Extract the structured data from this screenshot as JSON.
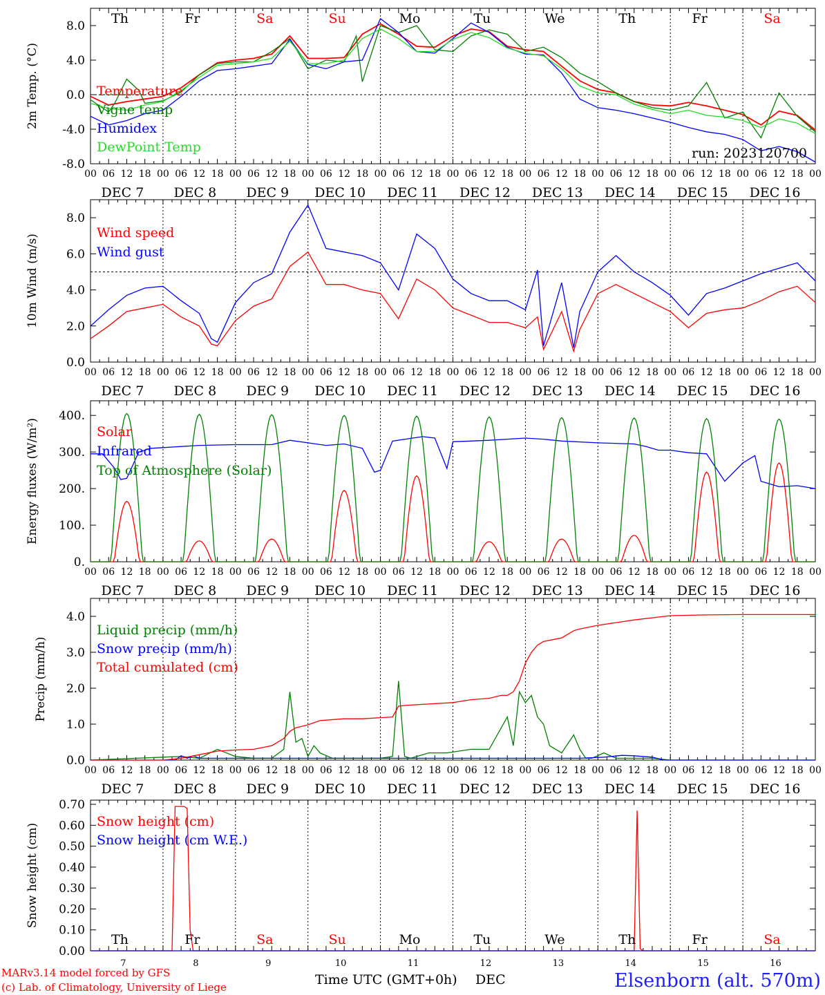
{
  "days": [
    {
      "short": "Th",
      "date": "7",
      "weekend": false
    },
    {
      "short": "Fr",
      "date": "8",
      "weekend": false
    },
    {
      "short": "Sa",
      "date": "9",
      "weekend": true
    },
    {
      "short": "Su",
      "date": "10",
      "weekend": true
    },
    {
      "short": "Mo",
      "date": "11",
      "weekend": false
    },
    {
      "short": "Tu",
      "date": "12",
      "weekend": false
    },
    {
      "short": "We",
      "date": "13",
      "weekend": false
    },
    {
      "short": "Th",
      "date": "14",
      "weekend": false
    },
    {
      "short": "Fr",
      "date": "15",
      "weekend": false
    },
    {
      "short": "Sa",
      "date": "16",
      "weekend": true
    }
  ],
  "month": "DEC",
  "hour_ticks": [
    "00",
    "06",
    "12",
    "18"
  ],
  "run_label": "run: 2023120700",
  "footer": {
    "credit1": "MARv3.14 model forced by GFS",
    "credit2": "(c) Lab. of Climatology, University of Liege",
    "xlabel": "Time UTC (GMT+0h)",
    "month": "DEC",
    "station": "Elsenborn (alt. 570m)"
  },
  "colors": {
    "red": "#ff0000",
    "green": "#008000",
    "blue": "#0000ff",
    "lightgreen": "#22dd22",
    "weekend": "#ff0000"
  },
  "chart_data": [
    {
      "type": "line",
      "ylabel": "2m Temp. (°C)",
      "ylim": [
        -8,
        10
      ],
      "yticks": [
        "-8.0",
        "-4.0",
        "0.0",
        "4.0",
        "8.0"
      ],
      "ytick_values": [
        -8,
        -4,
        0,
        4,
        8
      ],
      "dashed_reference": 0,
      "legend_placement": "left",
      "x_unit": "hours since DEC 7 00 UTC",
      "series": [
        {
          "name": "Temperature",
          "color": "red",
          "x": [
            0,
            6,
            12,
            18,
            24,
            30,
            36,
            42,
            48,
            54,
            60,
            66,
            72,
            78,
            84,
            90,
            96,
            102,
            108,
            114,
            120,
            126,
            132,
            138,
            144,
            150,
            156,
            162,
            168,
            174,
            180,
            186,
            192,
            198,
            204,
            210,
            216,
            222,
            228,
            234,
            240
          ],
          "y": [
            -0.2,
            -1.2,
            -0.8,
            -0.5,
            -0.2,
            0.8,
            2.3,
            3.7,
            4.0,
            4.2,
            4.7,
            6.8,
            4.2,
            4.2,
            4.3,
            7.0,
            8.2,
            7.0,
            5.6,
            5.5,
            6.8,
            7.6,
            7.3,
            5.6,
            5.2,
            5.0,
            3.3,
            1.6,
            0.6,
            0.2,
            -0.8,
            -1.2,
            -1.3,
            -0.9,
            -1.3,
            -1.8,
            -2.3,
            -3.5,
            -1.9,
            -2.4,
            -4.1
          ]
        },
        {
          "name": "Vigne temp",
          "color": "green",
          "x": [
            0,
            6,
            8,
            12,
            16,
            18,
            24,
            30,
            36,
            42,
            48,
            54,
            60,
            66,
            72,
            78,
            84,
            88,
            90,
            96,
            102,
            108,
            114,
            120,
            126,
            132,
            138,
            144,
            150,
            156,
            162,
            168,
            174,
            180,
            186,
            192,
            198,
            204,
            210,
            216,
            222,
            228,
            234,
            240
          ],
          "y": [
            -0.6,
            -2.0,
            -1.0,
            1.8,
            0.5,
            -1.0,
            -0.7,
            0.3,
            2.3,
            3.6,
            3.8,
            3.8,
            5.0,
            6.5,
            3.0,
            4.0,
            3.8,
            6.8,
            1.5,
            8.0,
            7.2,
            8.0,
            5.2,
            5.0,
            6.8,
            7.5,
            7.0,
            5.0,
            5.5,
            4.3,
            2.5,
            1.5,
            0.2,
            -0.8,
            -1.5,
            -1.8,
            -1.3,
            1.4,
            -2.7,
            -2.0,
            -5.0,
            0.2,
            -2.5,
            -4.3
          ]
        },
        {
          "name": "Humidex",
          "color": "blue",
          "x": [
            0,
            6,
            12,
            18,
            24,
            30,
            36,
            42,
            48,
            54,
            60,
            66,
            72,
            78,
            84,
            90,
            96,
            102,
            108,
            114,
            120,
            126,
            132,
            138,
            144,
            150,
            156,
            162,
            168,
            174,
            180,
            186,
            192,
            198,
            204,
            210,
            216,
            222,
            228,
            234,
            240
          ],
          "y": [
            -2.5,
            -3.5,
            -3.0,
            -2.2,
            -1.8,
            -0.2,
            1.6,
            2.8,
            3.0,
            3.3,
            3.6,
            6.4,
            3.5,
            3.0,
            3.8,
            4.0,
            8.8,
            7.2,
            5.0,
            4.8,
            6.5,
            8.3,
            7.2,
            5.5,
            4.7,
            4.6,
            2.5,
            -0.5,
            -1.5,
            -1.8,
            -2.2,
            -2.7,
            -3.2,
            -3.8,
            -4.3,
            -4.6,
            -5.2,
            -6.5,
            -6.0,
            -6.6,
            -7.8
          ]
        },
        {
          "name": "DewPoint Temp",
          "color": "lightgreen",
          "x": [
            0,
            6,
            12,
            18,
            24,
            30,
            36,
            42,
            48,
            54,
            60,
            66,
            72,
            78,
            84,
            90,
            96,
            102,
            108,
            114,
            120,
            126,
            132,
            138,
            144,
            150,
            156,
            162,
            168,
            174,
            180,
            186,
            192,
            198,
            204,
            210,
            216,
            222,
            228,
            234,
            240
          ],
          "y": [
            -1.0,
            -1.6,
            -1.8,
            -1.2,
            -0.8,
            0.5,
            2.0,
            3.4,
            3.6,
            3.8,
            4.2,
            6.2,
            3.6,
            3.6,
            4.0,
            6.5,
            7.6,
            6.5,
            5.0,
            5.0,
            6.4,
            7.2,
            6.6,
            5.4,
            4.8,
            4.5,
            3.0,
            1.0,
            0.2,
            0.0,
            -1.1,
            -1.7,
            -2.2,
            -1.8,
            -2.4,
            -2.6,
            -3.0,
            -3.8,
            -2.8,
            -3.3,
            -4.5
          ]
        }
      ]
    },
    {
      "type": "line",
      "ylabel": "10m Wind (m/s)",
      "ylim": [
        0,
        9
      ],
      "yticks": [
        "0.0",
        "2.0",
        "4.0",
        "6.0",
        "8.0"
      ],
      "ytick_values": [
        0,
        2,
        4,
        6,
        8
      ],
      "dashed_reference": 5,
      "legend_placement": "left",
      "x_unit": "hours since DEC 7 00 UTC",
      "series": [
        {
          "name": "Wind speed",
          "color": "red",
          "x": [
            0,
            6,
            12,
            18,
            24,
            30,
            36,
            40,
            42,
            48,
            54,
            60,
            66,
            72,
            78,
            84,
            90,
            96,
            102,
            108,
            114,
            120,
            126,
            132,
            138,
            144,
            148,
            150,
            156,
            160,
            162,
            168,
            174,
            180,
            186,
            192,
            198,
            204,
            210,
            216,
            222,
            228,
            234,
            240
          ],
          "y": [
            1.3,
            2.0,
            2.8,
            3.0,
            3.2,
            2.5,
            2.0,
            1.0,
            0.9,
            2.3,
            3.1,
            3.5,
            5.3,
            6.1,
            4.3,
            4.3,
            4.0,
            3.8,
            2.4,
            4.6,
            4.0,
            3.0,
            2.6,
            2.2,
            2.2,
            1.9,
            2.5,
            0.7,
            2.8,
            0.6,
            1.8,
            3.8,
            4.3,
            3.8,
            3.3,
            2.8,
            1.9,
            2.7,
            2.9,
            3.0,
            3.4,
            3.9,
            4.2,
            3.3
          ]
        },
        {
          "name": "Wind gust",
          "color": "blue",
          "x": [
            0,
            6,
            12,
            18,
            24,
            30,
            36,
            40,
            42,
            48,
            54,
            60,
            66,
            72,
            78,
            84,
            90,
            96,
            102,
            108,
            114,
            120,
            126,
            132,
            138,
            144,
            148,
            150,
            156,
            160,
            162,
            168,
            174,
            180,
            186,
            192,
            198,
            204,
            210,
            216,
            222,
            228,
            234,
            240
          ],
          "y": [
            2.0,
            2.9,
            3.7,
            4.1,
            4.2,
            3.4,
            2.7,
            1.3,
            1.1,
            3.3,
            4.4,
            4.9,
            7.2,
            8.7,
            6.3,
            6.1,
            5.9,
            5.5,
            4.0,
            7.1,
            6.3,
            4.6,
            3.8,
            3.4,
            3.4,
            2.9,
            5.1,
            0.9,
            4.4,
            0.8,
            2.8,
            5.0,
            5.9,
            5.0,
            4.4,
            3.7,
            2.6,
            3.8,
            4.1,
            4.5,
            4.9,
            5.2,
            5.5,
            4.5
          ]
        }
      ]
    },
    {
      "type": "line",
      "ylabel": "Energy fluxes (W/m²)",
      "ylim": [
        0,
        440
      ],
      "yticks": [
        "0.",
        "100.",
        "200.",
        "300.",
        "400."
      ],
      "ytick_values": [
        0,
        100,
        200,
        300,
        400
      ],
      "legend_placement": "left",
      "x_unit": "hours since DEC 7 00 UTC",
      "day_peaks": {
        "solar": [
          165,
          57,
          62,
          195,
          235,
          55,
          62,
          72,
          245,
          270
        ],
        "top_of_atmosphere": [
          405,
          403,
          402,
          400,
          398,
          396,
          394,
          393,
          391,
          390
        ]
      },
      "series": [
        {
          "name": "Solar",
          "color": "red",
          "derived_from": "day_peaks.solar"
        },
        {
          "name": "Infrared",
          "color": "blue",
          "x": [
            0,
            4,
            8,
            10,
            12,
            16,
            20,
            24,
            36,
            48,
            60,
            66,
            72,
            78,
            84,
            90,
            94,
            96,
            100,
            110,
            114,
            118,
            120,
            126,
            132,
            144,
            150,
            156,
            168,
            180,
            184,
            188,
            192,
            198,
            204,
            210,
            216,
            220,
            222,
            228,
            234,
            240
          ],
          "y": [
            295,
            295,
            255,
            225,
            228,
            300,
            310,
            312,
            318,
            320,
            320,
            332,
            325,
            318,
            322,
            310,
            245,
            250,
            330,
            342,
            338,
            255,
            328,
            330,
            332,
            338,
            335,
            330,
            325,
            322,
            315,
            305,
            305,
            298,
            295,
            220,
            270,
            290,
            220,
            205,
            208,
            200
          ]
        },
        {
          "name": "Top of Atmosphere (Solar)",
          "color": "green",
          "derived_from": "day_peaks.top_of_atmosphere"
        }
      ]
    },
    {
      "type": "line",
      "ylabel": "Precip (mm/h)",
      "ylim": [
        0,
        4.5
      ],
      "yticks": [
        "0.0",
        "1.0",
        "2.0",
        "3.0",
        "4.0"
      ],
      "ytick_values": [
        0,
        1,
        2,
        3,
        4
      ],
      "legend_placement": "left",
      "x_unit": "hours since DEC 7 00 UTC",
      "series": [
        {
          "name": "Liquid precip (mm/h)",
          "color": "green",
          "x": [
            0,
            30,
            36,
            42,
            48,
            54,
            60,
            64,
            66,
            68,
            70,
            72,
            74,
            76,
            80,
            84,
            90,
            96,
            100,
            102,
            104,
            106,
            112,
            118,
            126,
            132,
            138,
            140,
            142,
            144,
            146,
            148,
            150,
            152,
            156,
            160,
            162,
            164,
            166,
            170,
            174,
            178,
            182,
            186,
            192,
            200,
            210,
            240
          ],
          "y": [
            0,
            0.1,
            0.05,
            0.3,
            0.1,
            0.05,
            0.05,
            0.3,
            1.9,
            0.5,
            0.6,
            0.1,
            0.4,
            0.2,
            0.05,
            0.05,
            0.05,
            0.05,
            0.1,
            2.2,
            0.1,
            0.05,
            0.2,
            0.2,
            0.3,
            0.3,
            1.2,
            0.4,
            1.9,
            1.6,
            1.8,
            1.2,
            1.0,
            0.4,
            0.2,
            0.7,
            0.3,
            0.05,
            0.05,
            0.2,
            0.05,
            0.05,
            0.05,
            0.05,
            0,
            0,
            0,
            0
          ]
        },
        {
          "name": "Snow precip (mm/h)",
          "color": "blue",
          "x": [
            0,
            28,
            30,
            32,
            34,
            36,
            80,
            150,
            162,
            170,
            176,
            180,
            186,
            190,
            240
          ],
          "y": [
            0,
            0,
            0.12,
            0.05,
            0.12,
            0.05,
            0.05,
            0.05,
            0.05,
            0.08,
            0.13,
            0.12,
            0.08,
            0,
            0
          ]
        },
        {
          "name": "Total cumulated (cm)",
          "color": "red",
          "x": [
            0,
            24,
            30,
            36,
            42,
            48,
            54,
            60,
            64,
            66,
            68,
            72,
            76,
            84,
            90,
            96,
            100,
            102,
            104,
            106,
            120,
            126,
            132,
            136,
            138,
            140,
            142,
            144,
            146,
            148,
            150,
            156,
            160,
            162,
            168,
            180,
            192,
            204,
            216,
            228,
            240
          ],
          "y": [
            0,
            0,
            0.05,
            0.15,
            0.25,
            0.28,
            0.3,
            0.4,
            0.6,
            0.8,
            0.9,
            0.98,
            1.1,
            1.15,
            1.15,
            1.18,
            1.2,
            1.5,
            1.52,
            1.53,
            1.6,
            1.68,
            1.72,
            1.8,
            1.8,
            1.9,
            2.2,
            2.7,
            3.0,
            3.2,
            3.3,
            3.4,
            3.6,
            3.65,
            3.75,
            3.9,
            4.02,
            4.04,
            4.05,
            4.05,
            4.05
          ]
        }
      ]
    },
    {
      "type": "line",
      "ylabel": "Snow height (cm)",
      "ylim": [
        0,
        0.72
      ],
      "yticks": [
        "0.00",
        "0.10",
        "0.20",
        "0.30",
        "0.40",
        "0.50",
        "0.60",
        "0.70"
      ],
      "ytick_values": [
        0,
        0.1,
        0.2,
        0.3,
        0.4,
        0.5,
        0.6,
        0.7
      ],
      "legend_placement": "left",
      "x_unit": "hours since DEC 7 00 UTC",
      "series": [
        {
          "name": "Snow height (cm)",
          "color": "red",
          "x": [
            0,
            27,
            28,
            29,
            30,
            31,
            32,
            33,
            34,
            35,
            180,
            181,
            182,
            183,
            240
          ],
          "y": [
            0,
            0,
            0.69,
            0.69,
            0.69,
            0.69,
            0.68,
            0.1,
            0,
            0,
            0,
            0.67,
            0.01,
            0,
            0
          ]
        },
        {
          "name": "Snow height (cm W.E.)",
          "color": "blue",
          "x": [
            0,
            240
          ],
          "y": [
            0,
            0
          ]
        }
      ]
    }
  ]
}
